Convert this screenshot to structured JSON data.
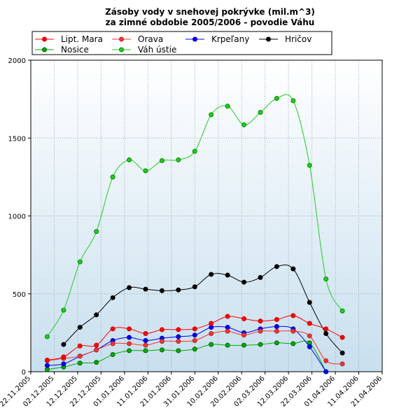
{
  "chart_data": {
    "type": "line",
    "title": "Zásoby vody v snehovej pokrývke (mil.m^3)",
    "subtitle": "za zimné obdobie 2005/2006 - povodie Váhu",
    "ylim": [
      0,
      2000
    ],
    "yticks": [
      "0",
      "500",
      "1000",
      "1500",
      "2000"
    ],
    "xlim": [
      "22.11.2005",
      "21.04.2006"
    ],
    "xtick_labels": [
      "22.11.2005",
      "02.12.2005",
      "12.12.2005",
      "22.12.2005",
      "01.01.2006",
      "11.01.2006",
      "21.01.2006",
      "31.01.2006",
      "10.02.2006",
      "20.02.2006",
      "02.03.2006",
      "12.03.2006",
      "22.03.2006",
      "01.04.2006",
      "11.04.2006",
      "21.04.2006"
    ],
    "grid": true,
    "legend_position": "top",
    "x": [
      "29.11.2005",
      "06.12.2005",
      "13.12.2005",
      "20.12.2005",
      "27.12.2005",
      "03.01.2006",
      "10.01.2006",
      "17.01.2006",
      "24.01.2006",
      "31.01.2006",
      "07.02.2006",
      "14.02.2006",
      "21.02.2006",
      "28.02.2006",
      "07.03.2006",
      "14.03.2006",
      "21.03.2006",
      "28.03.2006",
      "04.04.2006",
      "11.04.2006"
    ],
    "series": [
      {
        "name": "Lipt. Mara",
        "color": "#ff0000",
        "marker": "#cc0000",
        "values": [
          75,
          95,
          165,
          170,
          275,
          275,
          245,
          270,
          270,
          275,
          310,
          355,
          340,
          325,
          335,
          360,
          310,
          275,
          220,
          null
        ]
      },
      {
        "name": "Orava",
        "color": "#ff3030",
        "marker": "#a03030",
        "values": [
          70,
          85,
          100,
          140,
          180,
          180,
          170,
          195,
          195,
          200,
          245,
          260,
          235,
          260,
          260,
          260,
          230,
          70,
          50,
          null
        ]
      },
      {
        "name": "Krpeľany",
        "color": "#0000ff",
        "marker": "#0000a0",
        "values": [
          40,
          50,
          100,
          140,
          200,
          220,
          200,
          215,
          225,
          235,
          285,
          285,
          250,
          275,
          290,
          275,
          160,
          0,
          null,
          null
        ]
      },
      {
        "name": "Hričov",
        "color": "#000000",
        "marker": "#000000",
        "values": [
          null,
          175,
          285,
          365,
          475,
          540,
          530,
          520,
          525,
          545,
          625,
          620,
          575,
          605,
          675,
          660,
          445,
          245,
          120,
          null
        ]
      },
      {
        "name": "Nosice",
        "color": "#00aa00",
        "marker": "#006600",
        "values": [
          15,
          30,
          55,
          60,
          110,
          135,
          135,
          140,
          135,
          145,
          175,
          170,
          170,
          175,
          185,
          180,
          185,
          0,
          null,
          null
        ]
      },
      {
        "name": "Váh ústie",
        "color": "#22cc22",
        "marker": "#008800",
        "values": [
          225,
          395,
          705,
          900,
          1250,
          1360,
          1290,
          1355,
          1360,
          1415,
          1650,
          1705,
          1585,
          1665,
          1755,
          1740,
          1325,
          595,
          390,
          null
        ]
      }
    ]
  }
}
